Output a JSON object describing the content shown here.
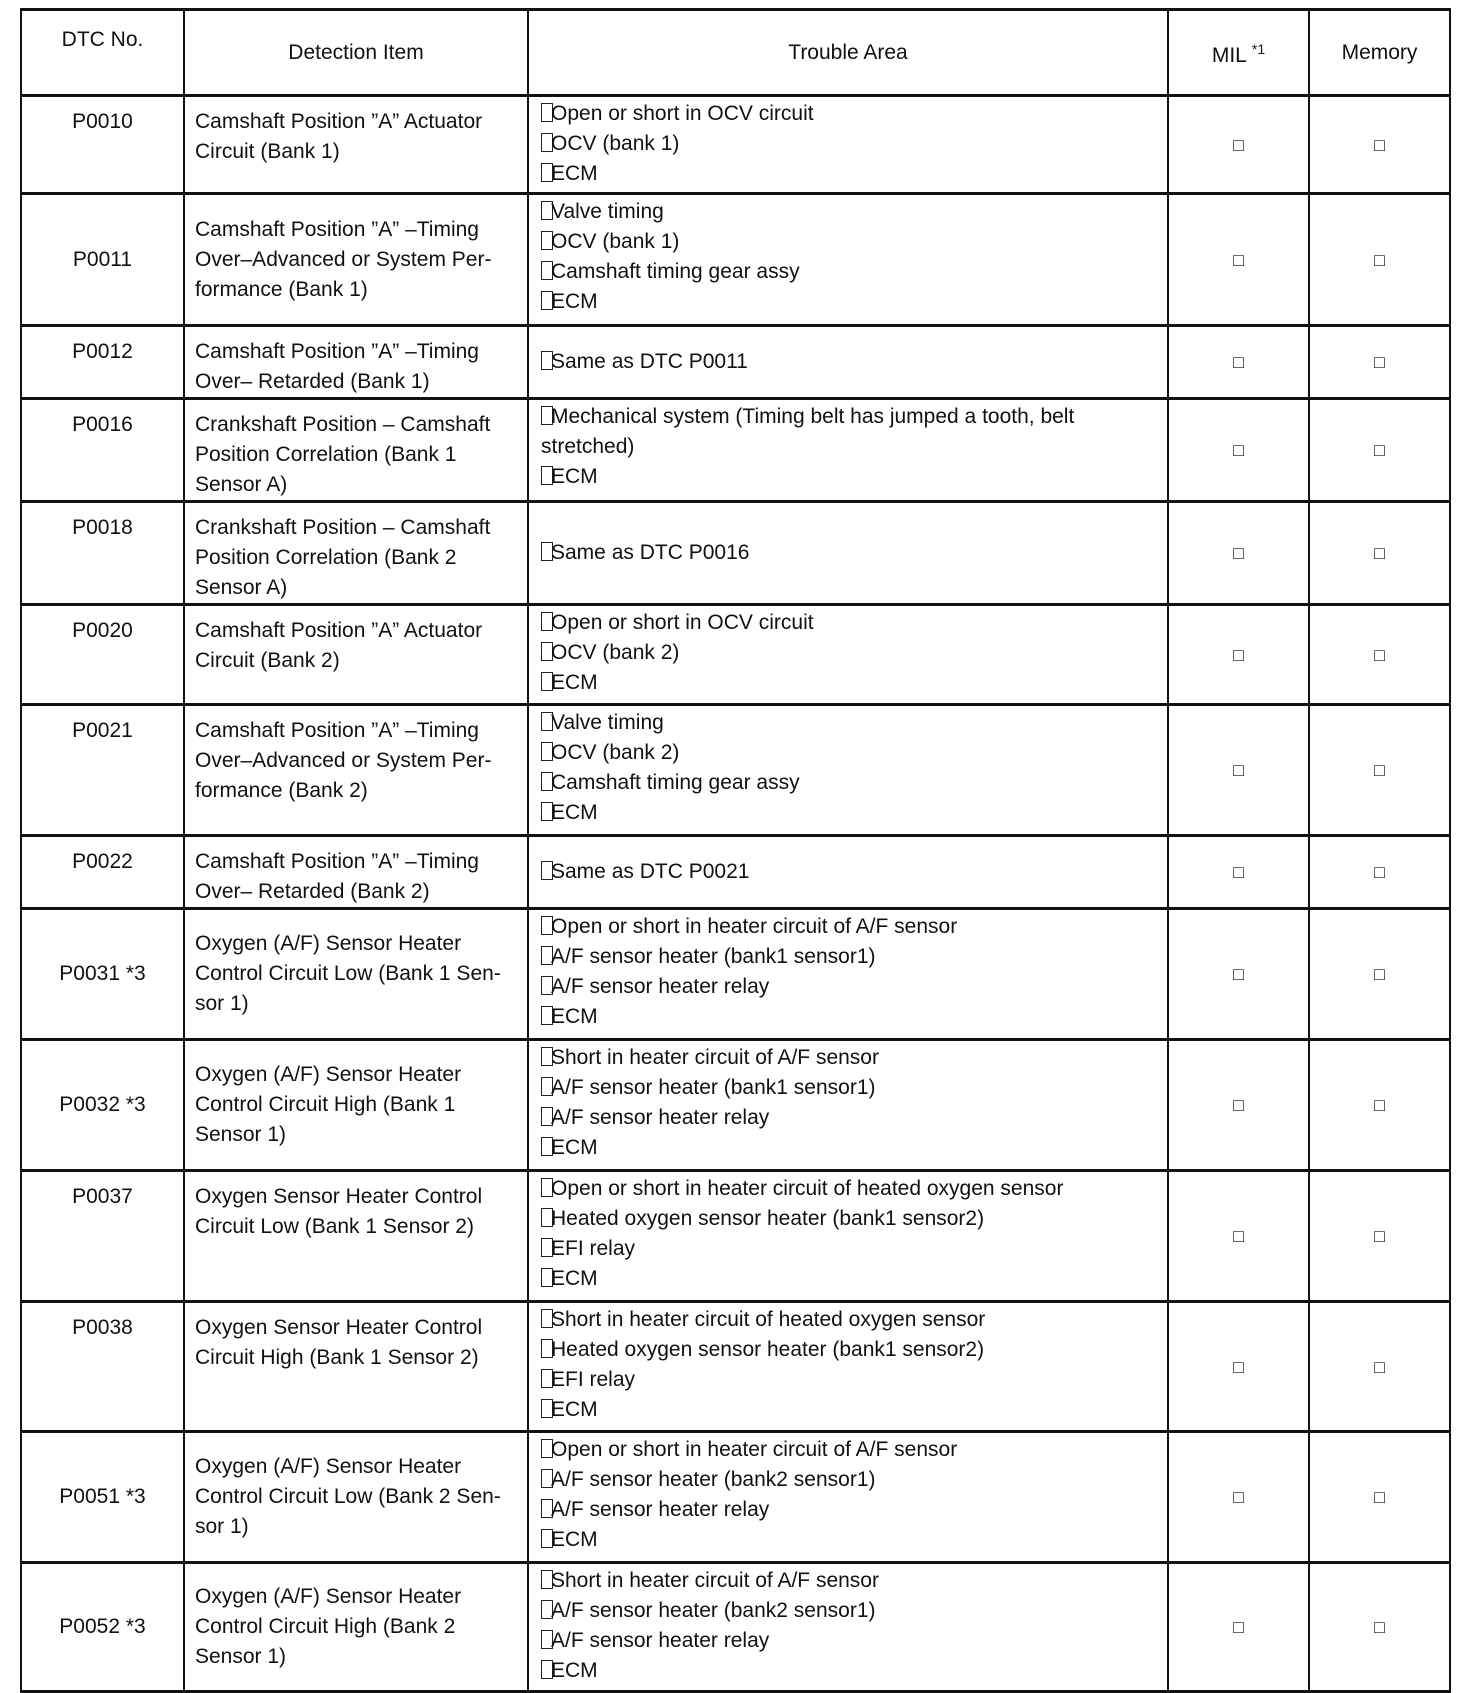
{
  "headers": {
    "dtc": "DTC No.",
    "detection": "Detection Item",
    "trouble": "Trouble Area",
    "mil": "MIL",
    "mil_note": "*1",
    "memory": "Memory"
  },
  "rows": [
    {
      "dtc": "P0010",
      "detection": "Camshaft Position ”A” Actuator Circuit (Bank 1)",
      "trouble": [
        "Open or short in OCV circuit",
        "OCV (bank 1)",
        "ECM"
      ],
      "mil": "□",
      "memory": "□"
    },
    {
      "dtc": "P0011",
      "detection": "Camshaft Position ”A” –Timing Over–Advanced or System Per-formance (Bank 1)",
      "trouble": [
        "Valve timing",
        "OCV (bank 1)",
        "Camshaft timing gear assy",
        "ECM"
      ],
      "mil": "□",
      "memory": "□"
    },
    {
      "dtc": "P0012",
      "detection": "Camshaft Position ”A” –Timing Over– Retarded (Bank 1)",
      "trouble": [
        "Same as DTC P0011"
      ],
      "mil": "□",
      "memory": "□"
    },
    {
      "dtc": "P0016",
      "detection": "Crankshaft Position – Camshaft Position Correlation (Bank 1 Sensor A)",
      "trouble": [
        "Mechanical system (Timing belt has jumped a tooth, belt stretched)",
        "ECM"
      ],
      "mil": "□",
      "memory": "□"
    },
    {
      "dtc": "P0018",
      "detection": "Crankshaft Position – Camshaft Position Correlation (Bank 2 Sensor A)",
      "trouble": [
        "Same as DTC P0016"
      ],
      "mil": "□",
      "memory": "□"
    },
    {
      "dtc": "P0020",
      "detection": "Camshaft Position ”A” Actuator Circuit (Bank 2)",
      "trouble": [
        "Open or short in OCV circuit",
        "OCV (bank 2)",
        "ECM"
      ],
      "mil": "□",
      "memory": "□"
    },
    {
      "dtc": "P0021",
      "detection": "Camshaft Position ”A” –Timing Over–Advanced or System Per-formance (Bank 2)",
      "trouble": [
        "Valve timing",
        "OCV (bank 2)",
        "Camshaft timing gear assy",
        "ECM"
      ],
      "mil": "□",
      "memory": "□"
    },
    {
      "dtc": "P0022",
      "detection": "Camshaft Position ”A” –Timing Over– Retarded (Bank 2)",
      "trouble": [
        "Same as DTC P0021"
      ],
      "mil": "□",
      "memory": "□"
    },
    {
      "dtc": "P0031 *3",
      "detection": "Oxygen (A/F) Sensor Heater Control Circuit Low (Bank 1 Sen-sor 1)",
      "trouble": [
        "Open or short in heater circuit of A/F sensor",
        "A/F sensor heater (bank1 sensor1)",
        "A/F sensor heater relay",
        "ECM"
      ],
      "mil": "□",
      "memory": "□"
    },
    {
      "dtc": "P0032 *3",
      "detection": "Oxygen (A/F) Sensor Heater Control Circuit High (Bank 1 Sensor 1)",
      "trouble": [
        "Short in heater circuit of A/F sensor",
        "A/F sensor heater (bank1 sensor1)",
        "A/F sensor heater relay",
        "ECM"
      ],
      "mil": "□",
      "memory": "□"
    },
    {
      "dtc": "P0037",
      "detection": "Oxygen Sensor Heater Control Circuit Low (Bank 1 Sensor 2)",
      "trouble": [
        "Open or short in heater circuit of heated oxygen sensor",
        "Heated oxygen sensor heater (bank1 sensor2)",
        "EFI relay",
        "ECM"
      ],
      "mil": "□",
      "memory": "□"
    },
    {
      "dtc": "P0038",
      "detection": "Oxygen Sensor Heater Control Circuit High (Bank 1 Sensor 2)",
      "trouble": [
        "Short in heater circuit of heated oxygen sensor",
        "Heated oxygen sensor heater (bank1 sensor2)",
        "EFI relay",
        "ECM"
      ],
      "mil": "□",
      "memory": "□"
    },
    {
      "dtc": "P0051 *3",
      "detection": "Oxygen (A/F) Sensor Heater Control Circuit Low (Bank 2 Sen-sor 1)",
      "trouble": [
        "Open or short in heater circuit of A/F sensor",
        "A/F sensor heater (bank2 sensor1)",
        "A/F sensor heater relay",
        "ECM"
      ],
      "mil": "□",
      "memory": "□"
    },
    {
      "dtc": "P0052 *3",
      "detection": "Oxygen (A/F) Sensor Heater Control Circuit High (Bank 2 Sensor 1)",
      "trouble": [
        "Short in heater circuit of A/F sensor",
        "A/F sensor heater (bank2 sensor1)",
        "A/F sensor heater relay",
        "ECM"
      ],
      "mil": "□",
      "memory": "□"
    }
  ]
}
